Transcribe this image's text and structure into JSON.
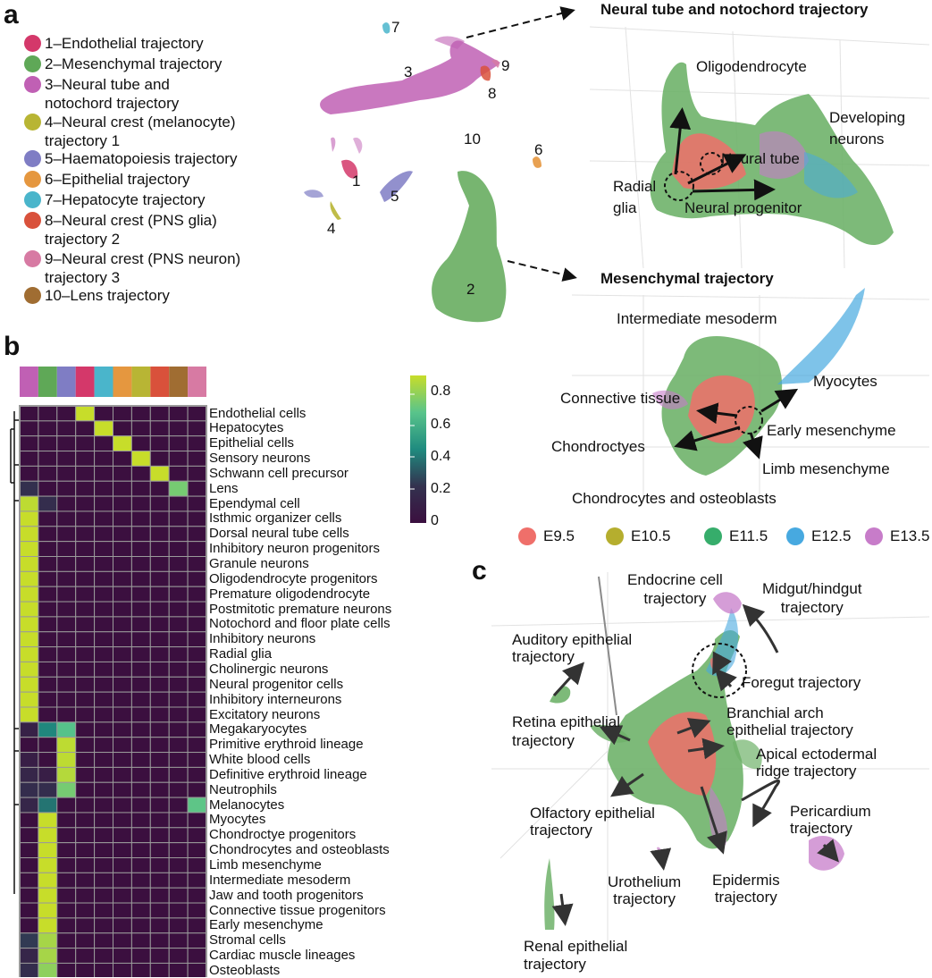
{
  "panels": {
    "a": "a",
    "b": "b",
    "c": "c"
  },
  "legend": [
    {
      "label": "1–Endothelial trajectory",
      "color": "#d4386a"
    },
    {
      "label": "2–Mesenchymal trajectory",
      "color": "#5fa857"
    },
    {
      "label": "3–Neural tube and\nnotochord trajectory",
      "color": "#c060b4"
    },
    {
      "label": "4–Neural crest (melanocyte)\ntrajectory 1",
      "color": "#b8b534"
    },
    {
      "label": "5–Haematopoiesis trajectory",
      "color": "#7f7dc4"
    },
    {
      "label": "6–Epithelial trajectory",
      "color": "#e5973f"
    },
    {
      "label": "7–Hepatocyte trajectory",
      "color": "#4ab5cb"
    },
    {
      "label": "8–Neural crest (PNS glia)\ntrajectory 2",
      "color": "#d9513b"
    },
    {
      "label": "9–Neural crest (PNS neuron)\ntrajectory 3",
      "color": "#d77aa3"
    },
    {
      "label": "10–Lens trajectory",
      "color": "#a06d32"
    }
  ],
  "umap_labels": [
    "1",
    "2",
    "3",
    "4",
    "5",
    "6",
    "7",
    "8",
    "9",
    "10"
  ],
  "neural_panel": {
    "title": "Neural tube and notochord trajectory",
    "labels": [
      "Oligodendrocyte",
      "Developing\nneurons",
      "Neural tube",
      "Radial\nglia",
      "Neural progenitor"
    ]
  },
  "mesenchymal_panel": {
    "title": "Mesenchymal trajectory",
    "labels": [
      "Intermediate mesoderm",
      "Myocytes",
      "Connective tissue",
      "Early mesenchyme",
      "Chondroctyes",
      "Limb mesenchyme",
      "Chondrocytes and osteoblasts"
    ]
  },
  "stage_legend": [
    {
      "label": "E9.5",
      "color": "#ef6f6a"
    },
    {
      "label": "E10.5",
      "color": "#b5ae2e"
    },
    {
      "label": "E11.5",
      "color": "#36ad6b"
    },
    {
      "label": "E12.5",
      "color": "#47a9e0"
    },
    {
      "label": "E13.5",
      "color": "#c77cc9"
    }
  ],
  "heatmap": {
    "column_colors": [
      "#c060b4",
      "#5fa857",
      "#7f7dc4",
      "#d4386a",
      "#4ab5cb",
      "#e5973f",
      "#b8b534",
      "#d9513b",
      "#a06d32",
      "#d77aa3"
    ],
    "colorbar_ticks": [
      "0.8",
      "0.6",
      "0.4",
      "0.2",
      "0"
    ],
    "rows": [
      {
        "label": "Endothelial cells",
        "values": [
          0,
          0,
          0,
          0.92,
          0,
          0,
          0,
          0,
          0,
          0
        ]
      },
      {
        "label": "Hepatocytes",
        "values": [
          0,
          0,
          0,
          0,
          0.92,
          0,
          0,
          0,
          0,
          0
        ]
      },
      {
        "label": "Epithelial cells",
        "values": [
          0,
          0,
          0,
          0,
          0,
          0.92,
          0,
          0,
          0,
          0
        ]
      },
      {
        "label": "Sensory neurons",
        "values": [
          0,
          0,
          0,
          0,
          0,
          0,
          0.92,
          0,
          0,
          0
        ]
      },
      {
        "label": "Schwann cell precursor",
        "values": [
          0,
          0,
          0,
          0,
          0,
          0,
          0,
          0.92,
          0,
          0
        ]
      },
      {
        "label": "Lens",
        "values": [
          0.22,
          0,
          0,
          0,
          0,
          0,
          0,
          0,
          0.75,
          0
        ]
      },
      {
        "label": "Ependymal cell",
        "values": [
          0.9,
          0.2,
          0,
          0,
          0,
          0,
          0,
          0,
          0,
          0
        ]
      },
      {
        "label": "Isthmic organizer cells",
        "values": [
          0.92,
          0,
          0,
          0,
          0,
          0,
          0,
          0,
          0,
          0
        ]
      },
      {
        "label": "Dorsal neural tube cells",
        "values": [
          0.92,
          0,
          0,
          0,
          0,
          0,
          0,
          0,
          0,
          0
        ]
      },
      {
        "label": "Inhibitory neuron progenitors",
        "values": [
          0.92,
          0,
          0,
          0,
          0,
          0,
          0,
          0,
          0,
          0
        ]
      },
      {
        "label": "Granule neurons",
        "values": [
          0.92,
          0,
          0,
          0,
          0,
          0,
          0,
          0,
          0,
          0
        ]
      },
      {
        "label": "Oligodendrocyte progenitors",
        "values": [
          0.92,
          0,
          0,
          0,
          0,
          0,
          0,
          0,
          0,
          0
        ]
      },
      {
        "label": "Premature oligodendrocyte",
        "values": [
          0.92,
          0,
          0,
          0,
          0,
          0,
          0,
          0,
          0,
          0
        ]
      },
      {
        "label": "Postmitotic premature neurons",
        "values": [
          0.92,
          0,
          0,
          0,
          0,
          0,
          0,
          0,
          0,
          0
        ]
      },
      {
        "label": "Notochord and floor plate cells",
        "values": [
          0.92,
          0,
          0,
          0,
          0,
          0,
          0,
          0,
          0,
          0
        ]
      },
      {
        "label": "Inhibitory neurons",
        "values": [
          0.92,
          0,
          0,
          0,
          0,
          0,
          0,
          0,
          0,
          0
        ]
      },
      {
        "label": "Radial glia",
        "values": [
          0.92,
          0,
          0,
          0,
          0,
          0,
          0,
          0,
          0,
          0
        ]
      },
      {
        "label": "Cholinergic neurons",
        "values": [
          0.92,
          0,
          0,
          0,
          0,
          0,
          0,
          0,
          0,
          0
        ]
      },
      {
        "label": "Neural progenitor cells",
        "values": [
          0.92,
          0,
          0,
          0,
          0,
          0,
          0,
          0,
          0,
          0
        ]
      },
      {
        "label": "Inhibitory interneurons",
        "values": [
          0.92,
          0,
          0,
          0,
          0,
          0,
          0,
          0,
          0,
          0
        ]
      },
      {
        "label": "Excitatory neurons",
        "values": [
          0.92,
          0,
          0,
          0,
          0,
          0,
          0,
          0,
          0,
          0
        ]
      },
      {
        "label": "Megakaryocytes",
        "values": [
          0.12,
          0.45,
          0.68,
          0,
          0,
          0,
          0,
          0,
          0,
          0
        ]
      },
      {
        "label": "Primitive erythroid lineage",
        "values": [
          0,
          0,
          0.9,
          0,
          0,
          0,
          0,
          0,
          0,
          0
        ]
      },
      {
        "label": "White blood cells",
        "values": [
          0.1,
          0,
          0.9,
          0,
          0,
          0,
          0,
          0,
          0,
          0
        ]
      },
      {
        "label": "Definitive erythroid lineage",
        "values": [
          0.15,
          0.1,
          0.88,
          0,
          0,
          0,
          0,
          0,
          0,
          0
        ]
      },
      {
        "label": "Neutrophils",
        "values": [
          0.2,
          0.2,
          0.75,
          0,
          0,
          0,
          0,
          0,
          0,
          0
        ]
      },
      {
        "label": "Melanocytes",
        "values": [
          0.15,
          0.4,
          0,
          0,
          0,
          0,
          0,
          0,
          0,
          0.7
        ]
      },
      {
        "label": "Myocytes",
        "values": [
          0,
          0.92,
          0,
          0,
          0,
          0,
          0,
          0,
          0,
          0
        ]
      },
      {
        "label": "Chondroctye progenitors",
        "values": [
          0,
          0.92,
          0,
          0,
          0,
          0,
          0,
          0,
          0,
          0
        ]
      },
      {
        "label": "Chondrocytes and osteoblasts",
        "values": [
          0,
          0.92,
          0,
          0,
          0,
          0,
          0,
          0,
          0,
          0
        ]
      },
      {
        "label": "Limb mesenchyme",
        "values": [
          0,
          0.92,
          0,
          0,
          0,
          0,
          0,
          0,
          0,
          0
        ]
      },
      {
        "label": "Intermediate mesoderm",
        "values": [
          0,
          0.92,
          0,
          0,
          0,
          0,
          0,
          0,
          0,
          0
        ]
      },
      {
        "label": "Jaw and tooth progenitors",
        "values": [
          0,
          0.92,
          0,
          0,
          0,
          0,
          0,
          0,
          0,
          0
        ]
      },
      {
        "label": "Connective tissue progenitors",
        "values": [
          0,
          0.92,
          0,
          0,
          0,
          0,
          0,
          0,
          0,
          0
        ]
      },
      {
        "label": "Early mesenchyme",
        "values": [
          0,
          0.92,
          0,
          0,
          0,
          0,
          0,
          0,
          0,
          0
        ]
      },
      {
        "label": "Stromal cells",
        "values": [
          0.25,
          0.85,
          0,
          0,
          0,
          0,
          0,
          0,
          0,
          0
        ]
      },
      {
        "label": "Cardiac muscle lineages",
        "values": [
          0.15,
          0.85,
          0,
          0,
          0,
          0,
          0,
          0,
          0,
          0
        ]
      },
      {
        "label": "Osteoblasts",
        "values": [
          0.2,
          0.8,
          0,
          0,
          0,
          0,
          0,
          0,
          0,
          0
        ]
      }
    ]
  },
  "panel_c": {
    "labels": [
      "Endocrine cell\ntrajectory",
      "Midgut/hindgut\ntrajectory",
      "Auditory epithelial\ntrajectory",
      "Foregut trajectory",
      "Retina epithelial\ntrajectory",
      "Branchial arch\nepithelial trajectory",
      "Apical ectodermal\nridge trajectory",
      "Olfactory epithelial\ntrajectory",
      "Pericardium\ntrajectory",
      "Urothelium\ntrajectory",
      "Epidermis\ntrajectory",
      "Renal epithelial\ntrajectory"
    ]
  }
}
